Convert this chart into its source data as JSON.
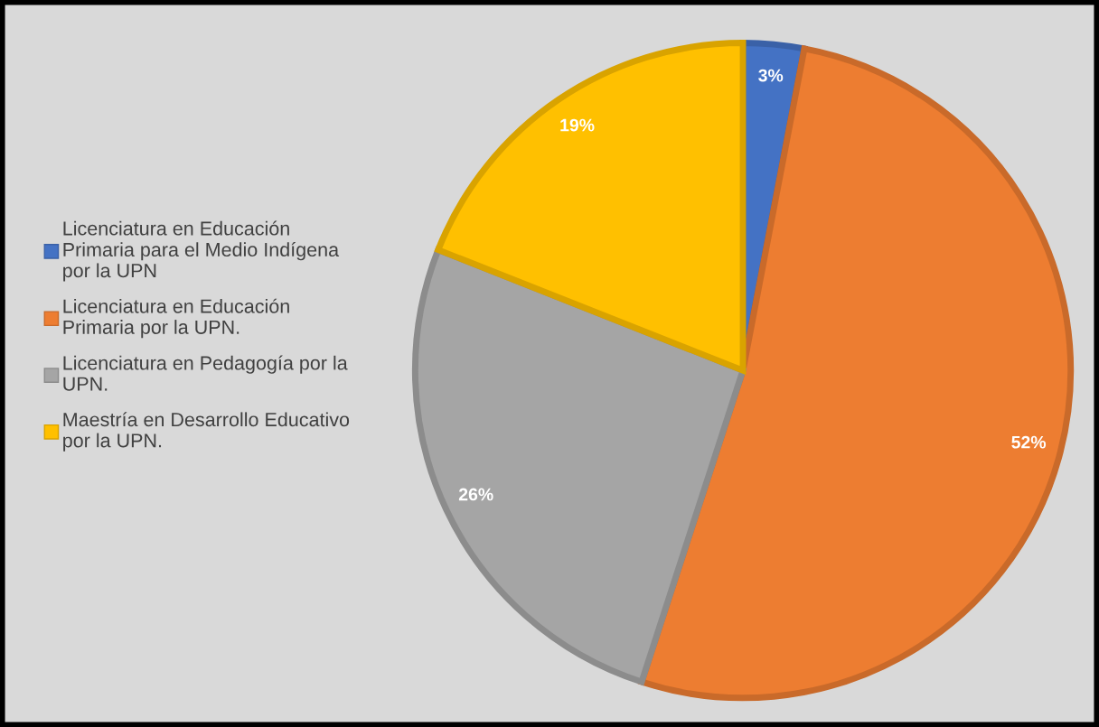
{
  "chart_data": {
    "type": "pie",
    "categories": [
      "Licenciatura en Educación Primaria para el Medio Indígena por la UPN",
      "Licenciatura en Educación Primaria por la UPN.",
      "Licenciatura en Pedagogía por la UPN.",
      "Maestría en Desarrollo Educativo por la UPN."
    ],
    "values": [
      3,
      52,
      26,
      19
    ],
    "value_labels": [
      "3%",
      "52%",
      "26%",
      "19%"
    ],
    "colors": [
      "#4472c4",
      "#ed7d31",
      "#a5a5a5",
      "#ffc000"
    ],
    "legend": "left"
  }
}
